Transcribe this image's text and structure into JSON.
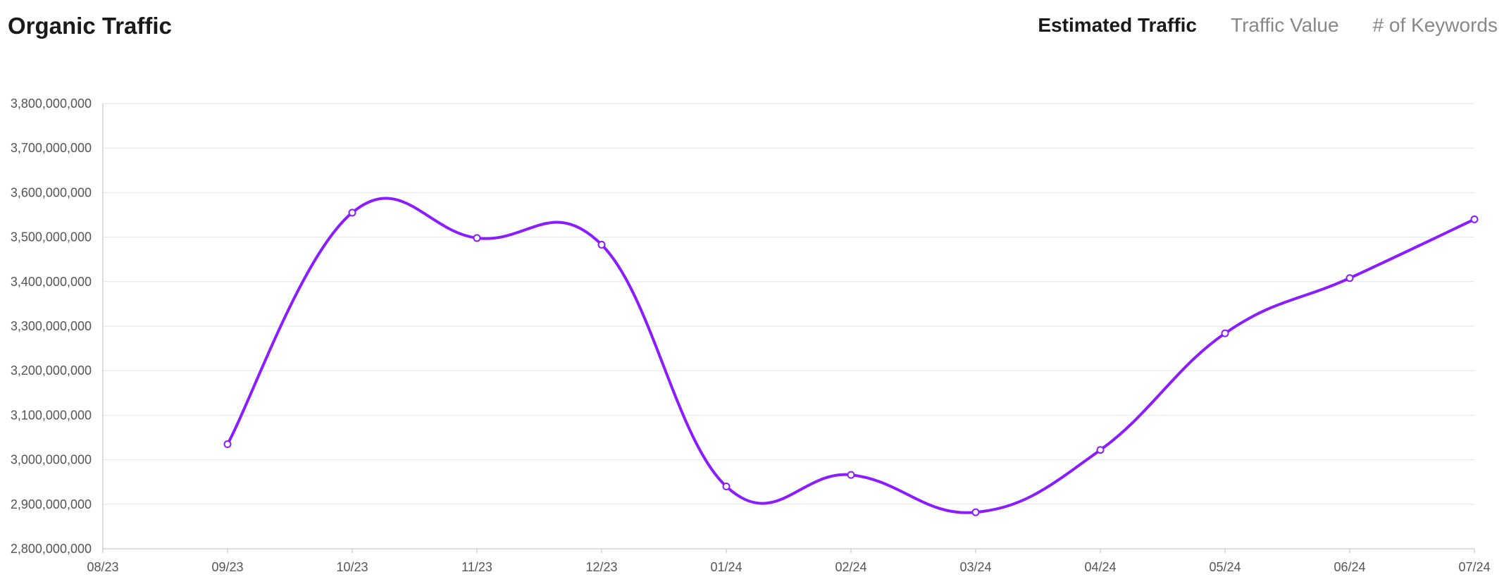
{
  "header": {
    "title": "Organic Traffic",
    "tabs": [
      {
        "label": "Estimated Traffic",
        "active": true
      },
      {
        "label": "Traffic Value",
        "active": false
      },
      {
        "label": "# of Keywords",
        "active": false
      }
    ]
  },
  "colors": {
    "line": "#8a1cff",
    "grid": "#e4e4e4",
    "axis": "#bdbdbd"
  },
  "chart_data": {
    "type": "line",
    "categories": [
      "08/23",
      "09/23",
      "10/23",
      "11/23",
      "12/23",
      "01/24",
      "02/24",
      "03/24",
      "04/24",
      "05/24",
      "06/24",
      "07/24"
    ],
    "series": [
      {
        "values": [
          null,
          3035000000,
          3555000000,
          3498000000,
          3483000000,
          2940000000,
          2966000000,
          2882000000,
          3022000000,
          3284000000,
          3408000000,
          3540000000
        ]
      }
    ],
    "ylim": [
      2800000000,
      3800000000
    ],
    "yticks": [
      2800000000,
      2900000000,
      3000000000,
      3100000000,
      3200000000,
      3300000000,
      3400000000,
      3500000000,
      3600000000,
      3700000000,
      3800000000
    ],
    "xlabel": "",
    "ylabel": "",
    "grid": true,
    "legend": "none"
  }
}
